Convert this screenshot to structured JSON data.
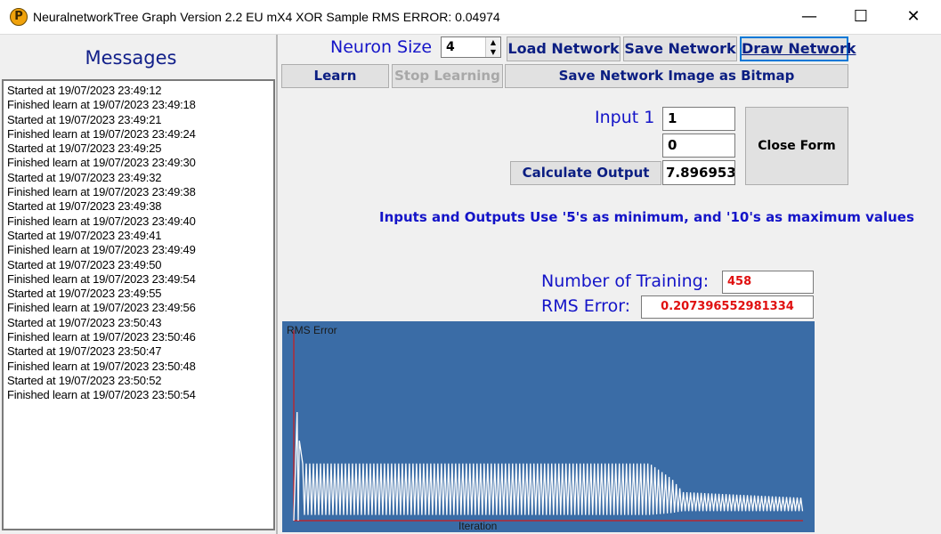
{
  "window": {
    "title": "NeuralnetworkTree Graph Version 2.2 EU mX4 XOR Sample RMS ERROR:   0.04974",
    "icon": "P",
    "minimize_glyph": "—",
    "maximize_glyph": "☐",
    "close_glyph": "✕"
  },
  "messages": {
    "title": "Messages",
    "lines": [
      "Started at 19/07/2023 23:49:12",
      "Finished learn at 19/07/2023 23:49:18",
      "Started at 19/07/2023 23:49:21",
      "Finished learn at 19/07/2023 23:49:24",
      "Started at 19/07/2023 23:49:25",
      "Finished learn at 19/07/2023 23:49:30",
      "Started at 19/07/2023 23:49:32",
      "Finished learn at 19/07/2023 23:49:38",
      "Started at 19/07/2023 23:49:38",
      "Finished learn at 19/07/2023 23:49:40",
      "Started at 19/07/2023 23:49:41",
      "Finished learn at 19/07/2023 23:49:49",
      "Started at 19/07/2023 23:49:50",
      "Finished learn at 19/07/2023 23:49:54",
      "Started at 19/07/2023 23:49:55",
      "Finished learn at 19/07/2023 23:49:56",
      "Started at 19/07/2023 23:50:43",
      "Finished learn at 19/07/2023 23:50:46",
      "Started at 19/07/2023 23:50:47",
      "Finished learn at 19/07/2023 23:50:48",
      "Started at 19/07/2023 23:50:52",
      "Finished learn at 19/07/2023 23:50:54"
    ]
  },
  "controls": {
    "neuron_size_label": "Neuron Size",
    "neuron_size_value": "4",
    "load_network": "Load Network",
    "save_network": "Save Network",
    "draw_network": "Draw Network",
    "learn": "Learn",
    "stop_learning": "Stop Learning",
    "save_bitmap": "Save Network Image as Bitmap",
    "input1_label": "Input 1",
    "input1_value": "1",
    "input2_value": "0",
    "calculate_output": "Calculate Output",
    "output_value": "7.896953",
    "close_form": "Close Form",
    "info_text": "Inputs and Outputs Use '5's as minimum, and '10's as maximum values",
    "training_label": "Number of Training:",
    "training_value": "458",
    "rms_label": "RMS Error:",
    "rms_value": "0.207396552981334"
  },
  "chart_data": {
    "type": "line",
    "ylabel": "RMS Error",
    "xlabel": "Iteration",
    "x_range": [
      0,
      458
    ],
    "y_range": [
      0,
      1
    ],
    "grid": false,
    "colors": {
      "background": "#3a6ca6",
      "series": "#ffffff",
      "axes": "#d11919"
    },
    "series": [
      {
        "values_description_free": true,
        "envelope": [
          {
            "x": 0,
            "high": 0.0,
            "low": 0.0
          },
          {
            "x": 3,
            "high": 0.57,
            "low": 0.0
          },
          {
            "x": 5,
            "high": 0.42,
            "low": 0.0
          },
          {
            "x": 8,
            "high": 0.3,
            "low": 0.03
          },
          {
            "x": 320,
            "high": 0.3,
            "low": 0.03
          },
          {
            "x": 340,
            "high": 0.22,
            "low": 0.04
          },
          {
            "x": 350,
            "high": 0.15,
            "low": 0.05
          },
          {
            "x": 458,
            "high": 0.12,
            "low": 0.05
          }
        ]
      }
    ]
  }
}
